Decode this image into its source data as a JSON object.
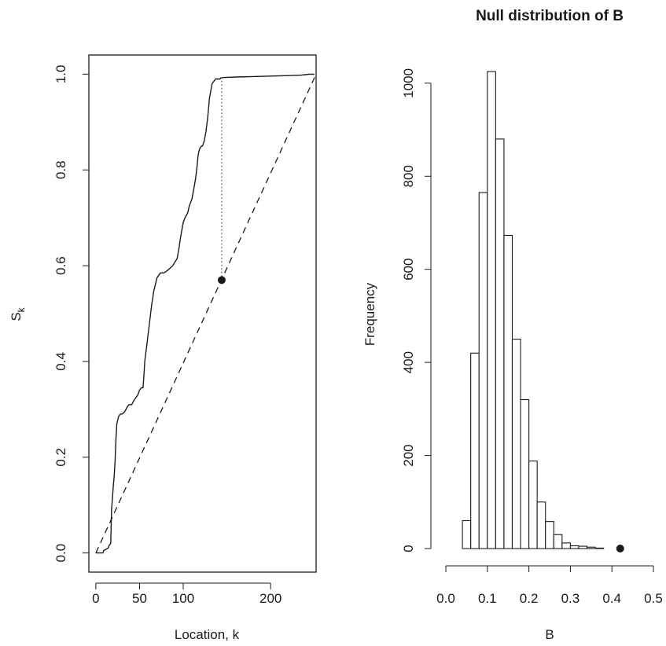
{
  "chart_data": [
    {
      "type": "line",
      "title": "",
      "xlabel": "Location, k",
      "ylabel_main": "S",
      "ylabel_sub": "k",
      "xlim": [
        -8,
        252
      ],
      "ylim": [
        -0.04,
        1.04
      ],
      "xticks": [
        0,
        50,
        100,
        200
      ],
      "xtick_labels": [
        "0",
        "50",
        "100",
        "200"
      ],
      "yticks": [
        0.0,
        0.2,
        0.4,
        0.6,
        0.8,
        1.0
      ],
      "ytick_labels": [
        "0.0",
        "0.2",
        "0.4",
        "0.6",
        "0.8",
        "1.0"
      ],
      "series": [
        {
          "style": "solid",
          "x": [
            0,
            8,
            9,
            14,
            15,
            17,
            18,
            20,
            21,
            22,
            23,
            24,
            26,
            28,
            30,
            33,
            36,
            38,
            41,
            44,
            46,
            48,
            50,
            52,
            54,
            55,
            56,
            58,
            60,
            62,
            64,
            65,
            66,
            68,
            70,
            72,
            74,
            76,
            78,
            82,
            88,
            93,
            95,
            97,
            100,
            102,
            105,
            107,
            110,
            112,
            114,
            116,
            117,
            118,
            119,
            121,
            122,
            124,
            126,
            128,
            130,
            133,
            135,
            137,
            140,
            141,
            142,
            143,
            147,
            160,
            180,
            200,
            220,
            235,
            240,
            244,
            250
          ],
          "y": [
            0.0,
            0.0,
            0.005,
            0.01,
            0.015,
            0.02,
            0.09,
            0.14,
            0.16,
            0.19,
            0.24,
            0.27,
            0.285,
            0.29,
            0.29,
            0.295,
            0.305,
            0.31,
            0.31,
            0.32,
            0.325,
            0.33,
            0.34,
            0.345,
            0.345,
            0.37,
            0.4,
            0.43,
            0.46,
            0.49,
            0.52,
            0.53,
            0.545,
            0.56,
            0.575,
            0.58,
            0.585,
            0.585,
            0.585,
            0.59,
            0.6,
            0.615,
            0.635,
            0.66,
            0.69,
            0.7,
            0.71,
            0.725,
            0.74,
            0.76,
            0.78,
            0.81,
            0.83,
            0.84,
            0.845,
            0.85,
            0.85,
            0.86,
            0.88,
            0.91,
            0.95,
            0.98,
            0.985,
            0.99,
            0.99,
            0.99,
            0.99,
            0.992,
            0.993,
            0.994,
            0.995,
            0.996,
            0.997,
            0.998,
            0.999,
            1.0,
            1.0
          ]
        },
        {
          "style": "dashed",
          "x": [
            0,
            252
          ],
          "y": [
            0.0,
            1.0
          ]
        }
      ],
      "annotation": {
        "style": "dotted-vertical",
        "x": 144,
        "y_from": 0.57,
        "y_to": 0.99
      },
      "point": {
        "x": 144,
        "y": 0.57
      }
    },
    {
      "type": "bar",
      "title": "Null distribution of B",
      "xlabel": "B",
      "ylabel": "Frequency",
      "xlim": [
        0.0,
        0.5
      ],
      "ylim": [
        0,
        1020
      ],
      "xticks": [
        0.0,
        0.1,
        0.2,
        0.3,
        0.4,
        0.5
      ],
      "xtick_labels": [
        "0.0",
        "0.1",
        "0.2",
        "0.3",
        "0.4",
        "0.5"
      ],
      "yticks": [
        0,
        200,
        400,
        600,
        800,
        1000
      ],
      "ytick_labels": [
        "0",
        "200",
        "400",
        "600",
        "800",
        "1000"
      ],
      "bin_width": 0.02,
      "bin_starts": [
        0.04,
        0.06,
        0.08,
        0.1,
        0.12,
        0.14,
        0.16,
        0.18,
        0.2,
        0.22,
        0.24,
        0.26,
        0.28,
        0.3,
        0.32,
        0.34,
        0.36
      ],
      "frequencies": [
        60,
        420,
        765,
        1025,
        880,
        673,
        450,
        320,
        188,
        100,
        58,
        30,
        12,
        6,
        5,
        3,
        1
      ],
      "point": {
        "x": 0.42,
        "y": 0
      }
    }
  ]
}
